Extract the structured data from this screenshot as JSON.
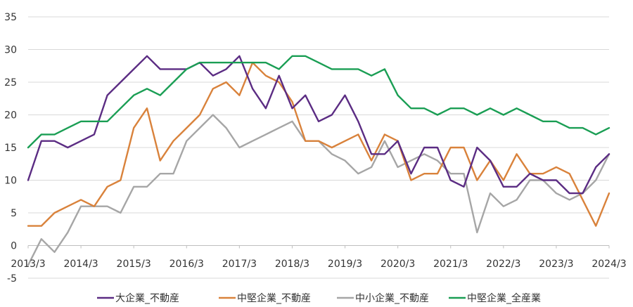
{
  "chart_data": {
    "type": "line",
    "title": "",
    "xlabel": "",
    "ylabel": "",
    "ylim": [
      -5,
      35
    ],
    "yticks": [
      -5,
      0,
      5,
      10,
      15,
      20,
      25,
      30,
      35
    ],
    "xticks": [
      "2013/3",
      "2014/3",
      "2015/3",
      "2016/3",
      "2017/3",
      "2018/3",
      "2019/3",
      "2020/3",
      "2021/3",
      "2022/3",
      "2023/3",
      "2024/3"
    ],
    "x_start": "2013/3",
    "x_end": "2024/3",
    "x_step": "quarterly",
    "grid": true,
    "legend_position": "bottom",
    "series": [
      {
        "name": "大企業_不動産",
        "color": "#5b2c83",
        "values": [
          10,
          16,
          16,
          15,
          16,
          17,
          23,
          25,
          27,
          29,
          27,
          27,
          27,
          28,
          26,
          27,
          29,
          24,
          21,
          26,
          21,
          23,
          19,
          20,
          23,
          19,
          14,
          14,
          16,
          11,
          15,
          15,
          10,
          9,
          15,
          13,
          9,
          9,
          11,
          10,
          10,
          8,
          8,
          12,
          14
        ]
      },
      {
        "name": "中堅企業_不動産",
        "color": "#d9823b",
        "values": [
          3,
          3,
          5,
          6,
          7,
          6,
          9,
          10,
          18,
          21,
          13,
          16,
          18,
          20,
          24,
          25,
          23,
          28,
          26,
          25,
          22,
          16,
          16,
          15,
          16,
          17,
          13,
          17,
          16,
          10,
          11,
          11,
          15,
          15,
          10,
          13,
          10,
          14,
          11,
          11,
          12,
          11,
          7,
          3,
          8
        ]
      },
      {
        "name": "中小企業_不動産",
        "color": "#a6a6a6",
        "values": [
          -3,
          1,
          -1,
          2,
          6,
          6,
          6,
          5,
          9,
          9,
          11,
          11,
          16,
          18,
          20,
          18,
          15,
          16,
          17,
          18,
          19,
          16,
          16,
          14,
          13,
          11,
          12,
          16,
          12,
          13,
          14,
          13,
          11,
          11,
          2,
          8,
          6,
          7,
          10,
          10,
          8,
          7,
          8,
          10,
          14
        ]
      },
      {
        "name": "中堅企業_全産業",
        "color": "#1a9e54",
        "values": [
          15,
          17,
          17,
          18,
          19,
          19,
          19,
          21,
          23,
          24,
          23,
          25,
          27,
          28,
          28,
          28,
          28,
          28,
          28,
          27,
          29,
          29,
          28,
          27,
          27,
          27,
          26,
          27,
          23,
          21,
          21,
          20,
          21,
          21,
          20,
          21,
          20,
          21,
          20,
          19,
          19,
          18,
          18,
          17,
          18
        ]
      }
    ]
  }
}
